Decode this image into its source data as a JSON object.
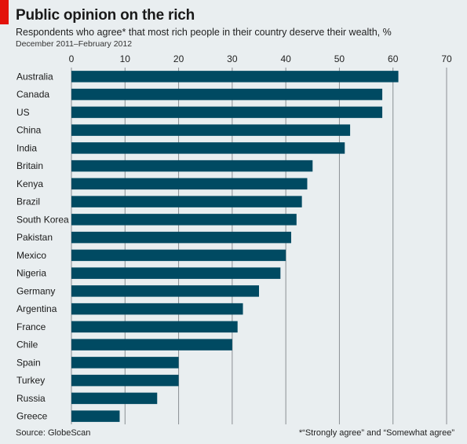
{
  "colors": {
    "accent": "#e3120b",
    "bar": "#004a62",
    "gridline": "#8a8f93",
    "background": "#e9eef0"
  },
  "header": {
    "title": "Public opinion on the rich",
    "subtitle": "Respondents who agree* that most rich people in their country deserve their wealth, %",
    "period": "December 2011–February 2012"
  },
  "footer": {
    "source": "Source: GlobeScan",
    "footnote": "*“Strongly agree” and “Somewhat agree”"
  },
  "chart_data": {
    "type": "bar",
    "orientation": "horizontal",
    "title": "Public opinion on the rich",
    "xlim": [
      0,
      70
    ],
    "ticks": [
      0,
      10,
      20,
      30,
      40,
      50,
      60,
      70
    ],
    "tick_position": "top",
    "grid": true,
    "categories": [
      "Australia",
      "Canada",
      "US",
      "China",
      "India",
      "Britain",
      "Kenya",
      "Brazil",
      "South Korea",
      "Pakistan",
      "Mexico",
      "Nigeria",
      "Germany",
      "Argentina",
      "France",
      "Chile",
      "Spain",
      "Turkey",
      "Russia",
      "Greece"
    ],
    "values": [
      61,
      58,
      58,
      52,
      51,
      45,
      44,
      43,
      42,
      41,
      40,
      39,
      35,
      32,
      31,
      30,
      20,
      20,
      16,
      9
    ]
  }
}
